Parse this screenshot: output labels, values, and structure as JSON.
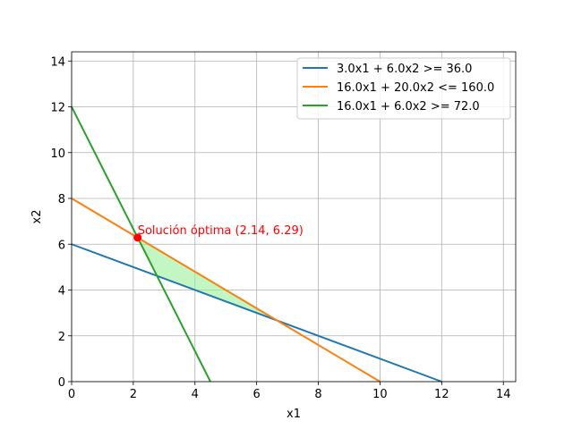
{
  "chart_data": {
    "type": "line",
    "title": "",
    "xlabel": "x1",
    "ylabel": "x2",
    "xlim": [
      0,
      14.4
    ],
    "ylim": [
      0,
      14.4
    ],
    "xticks": [
      0,
      2,
      4,
      6,
      8,
      10,
      12,
      14
    ],
    "yticks": [
      0,
      2,
      4,
      6,
      8,
      10,
      12,
      14
    ],
    "grid": true,
    "legend_placement": "top-right",
    "series": [
      {
        "name": "3.0x1 + 6.0x2 >= 36.0",
        "color": "#1f77b4",
        "x": [
          0,
          12
        ],
        "y": [
          6,
          0
        ]
      },
      {
        "name": "16.0x1 + 20.0x2 <= 160.0",
        "color": "#ff7f0e",
        "x": [
          0,
          10
        ],
        "y": [
          8,
          0
        ]
      },
      {
        "name": "16.0x1 + 6.0x2 >= 72.0",
        "color": "#2ca02c",
        "x": [
          0,
          4.5
        ],
        "y": [
          12,
          0
        ]
      }
    ],
    "feasible_region": {
      "color": "#90ee90",
      "vertices": [
        [
          2.14,
          6.29
        ],
        [
          2.8,
          4.6
        ],
        [
          6.67,
          2.67
        ]
      ]
    },
    "optimal_point": {
      "x": 2.14,
      "y": 6.29,
      "color": "#ff0000"
    },
    "annotations": [
      {
        "text": "Solución óptima (2.14, 6.29)",
        "x": 2.14,
        "y": 6.29,
        "color": "#ff0000"
      }
    ]
  }
}
